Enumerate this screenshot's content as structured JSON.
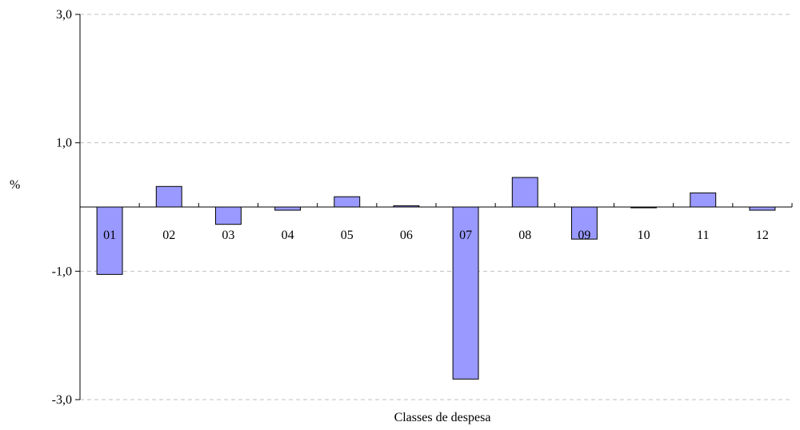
{
  "chart_data": {
    "type": "bar",
    "categories": [
      "01",
      "02",
      "03",
      "04",
      "05",
      "06",
      "07",
      "08",
      "09",
      "10",
      "11",
      "12"
    ],
    "values": [
      -1.05,
      0.32,
      -0.27,
      -0.05,
      0.16,
      0.02,
      -2.68,
      0.46,
      -0.5,
      0.0,
      0.22,
      -0.05
    ],
    "ylim": [
      -3.0,
      3.0
    ],
    "yticks": [
      3.0,
      1.0,
      -1.0,
      -3.0
    ],
    "ytick_labels": [
      "3,0",
      "1,0",
      "-1,0",
      "-3,0"
    ],
    "xlabel": "Classes de despesa",
    "ylabel": "%",
    "grid": true,
    "legend": "none",
    "colors": {
      "bar_fill": "#9999ff",
      "bar_stroke": "#000000",
      "grid": "#c0c0c0"
    }
  }
}
